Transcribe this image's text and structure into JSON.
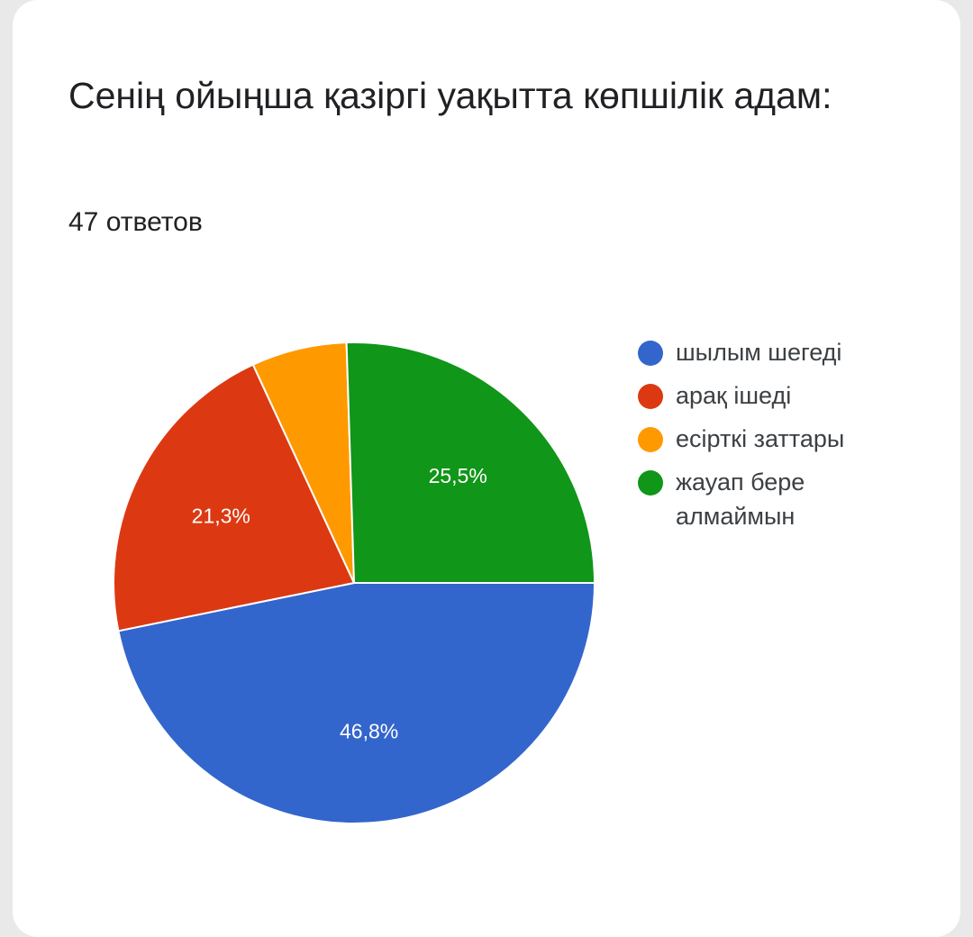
{
  "chart_data": {
    "type": "pie",
    "title": "Сенің ойыңша қазіргі уақытта көпшілік адам:",
    "subtitle": "47 ответов",
    "legend_position": "right",
    "slices": [
      {
        "name": "шылым шегеді",
        "value": 46.8,
        "label": "46,8%",
        "color": "#3366cc"
      },
      {
        "name": "арақ ішеді",
        "value": 21.3,
        "label": "21,3%",
        "color": "#dc3912"
      },
      {
        "name": "есірткі заттары",
        "value": 6.4,
        "label": "",
        "color": "#ff9900"
      },
      {
        "name": "жауап бере алмаймын",
        "value": 25.5,
        "label": "25,5%",
        "color": "#109618"
      }
    ]
  }
}
